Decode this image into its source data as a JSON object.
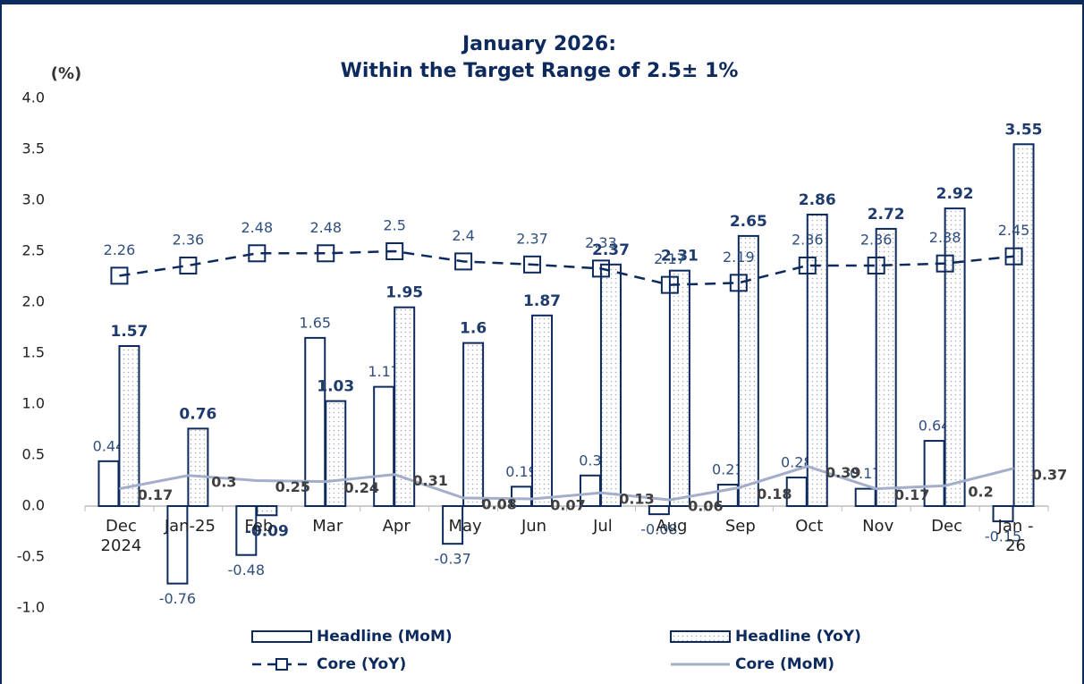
{
  "chart_data": {
    "type": "bar",
    "title": [
      "January 2026:",
      "Within the Target Range of 2.5± 1%"
    ],
    "y_axis_label": "(%)",
    "categories": [
      "Dec\n2024",
      "Jan-25",
      "Feb",
      "Mar",
      "Apr",
      "May",
      "Jun",
      "Jul",
      "Aug",
      "Sep",
      "Oct",
      "Nov",
      "Dec",
      "Jan -\n26"
    ],
    "series": [
      {
        "name": "Headline (MoM)",
        "type": "bar",
        "color": "#0d2a5e",
        "values": [
          0.44,
          -0.76,
          -0.48,
          1.65,
          1.17,
          -0.37,
          0.19,
          0.3,
          -0.08,
          0.21,
          0.28,
          0.17,
          0.64,
          -0.15
        ]
      },
      {
        "name": "Headline (YoY)",
        "type": "bar",
        "color": "#0d2a5e",
        "values": [
          1.57,
          0.76,
          -0.09,
          1.03,
          1.95,
          1.6,
          1.87,
          2.37,
          2.31,
          2.65,
          2.86,
          2.72,
          2.92,
          3.55
        ]
      },
      {
        "name": "Core (YoY)",
        "type": "line",
        "color": "#0d2a5e",
        "values": [
          2.26,
          2.36,
          2.48,
          2.48,
          2.5,
          2.4,
          2.37,
          2.33,
          2.17,
          2.19,
          2.36,
          2.36,
          2.38,
          2.45
        ]
      },
      {
        "name": "Core (MoM)",
        "type": "line",
        "color": "#a3aecb",
        "values": [
          0.17,
          0.3,
          0.25,
          0.24,
          0.31,
          0.08,
          0.07,
          0.13,
          0.06,
          0.18,
          0.39,
          0.17,
          0.2,
          0.37
        ]
      }
    ],
    "ylim": [
      -1,
      4
    ],
    "yticks": [
      {
        "value": -1,
        "label": "-1.0"
      },
      {
        "value": -0.5,
        "label": "-0.5"
      },
      {
        "value": 0,
        "label": "0.0"
      },
      {
        "value": 0.5,
        "label": "0.5"
      },
      {
        "value": 1,
        "label": "1.0"
      },
      {
        "value": 1.5,
        "label": "1.5"
      },
      {
        "value": 2,
        "label": "2.0"
      },
      {
        "value": 2.5,
        "label": "2.5"
      },
      {
        "value": 3,
        "label": "3.0"
      },
      {
        "value": 3.5,
        "label": "3.5"
      },
      {
        "value": 4,
        "label": "4.0"
      }
    ],
    "grid": false
  }
}
